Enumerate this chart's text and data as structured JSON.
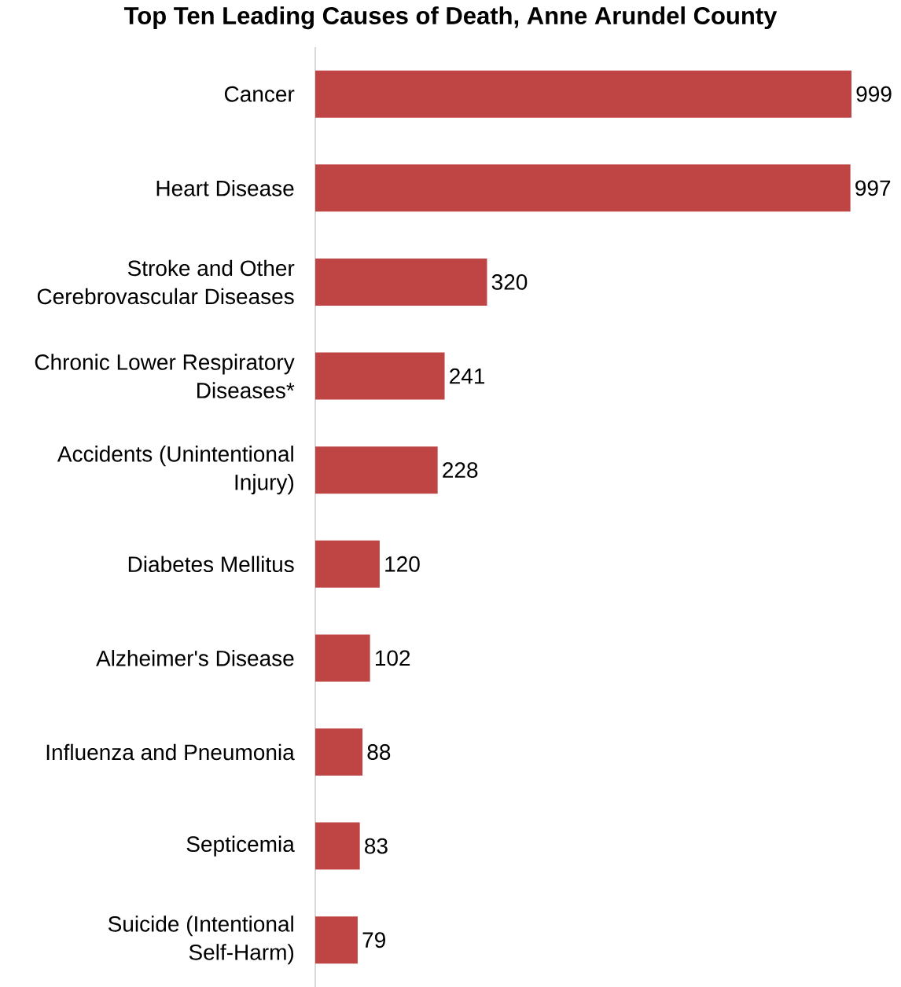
{
  "chart_data": {
    "type": "bar",
    "orientation": "horizontal",
    "title": "Top Ten Leading Causes of Death, Anne Arundel County",
    "categories": [
      "Cancer",
      "Heart Disease",
      "Stroke and Other Cerebrovascular Diseases",
      "Chronic Lower Respiratory Diseases*",
      "Accidents (Unintentional Injury)",
      "Diabetes Mellitus",
      "Alzheimer's Disease",
      "Influenza and Pneumonia",
      "Septicemia",
      "Suicide (Intentional Self-Harm)"
    ],
    "values": [
      999,
      997,
      320,
      241,
      228,
      120,
      102,
      88,
      83,
      79
    ],
    "color": "#bf4545",
    "data_labels": true,
    "tick_labels": "y"
  }
}
